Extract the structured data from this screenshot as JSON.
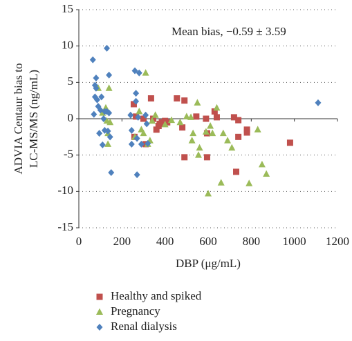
{
  "chart_data": {
    "type": "scatter",
    "annotation": "Mean bias, −0.59 ± 3.59",
    "xlabel": "DBP (μg/mL)",
    "ylabel": [
      "ADVIA Centaur bias to",
      "LC-MS/MS (ng/mL)"
    ],
    "xlim": [
      0,
      1200
    ],
    "xticks": [
      0,
      200,
      400,
      600,
      800,
      1000,
      1200
    ],
    "ylim": [
      -15,
      15
    ],
    "yticks": [
      -15,
      -10,
      -5,
      0,
      5,
      10,
      15
    ],
    "grid": true,
    "legend": "bottom",
    "series": [
      {
        "name": "Healthy and spiked",
        "color": "#c0504d",
        "marker": "square",
        "x": [
          255,
          258,
          265,
          335,
          345,
          360,
          370,
          375,
          385,
          400,
          410,
          455,
          480,
          490,
          490,
          545,
          590,
          595,
          595,
          630,
          640,
          720,
          730,
          740,
          740,
          780,
          780,
          980,
          310,
          300
        ],
        "values": [
          2,
          -2.5,
          0.3,
          2.8,
          0,
          -1.5,
          -1,
          -0.7,
          -0.5,
          -0.3,
          -0.5,
          2.8,
          -1.2,
          2.5,
          -5.3,
          0.3,
          0,
          -2,
          -5.3,
          1,
          0.2,
          0.2,
          -7.3,
          -2.5,
          -0.2,
          -1.5,
          -1.9,
          -3.3,
          -3.5,
          0
        ]
      },
      {
        "name": "Pregnancy",
        "color": "#9bbb59",
        "marker": "triangle",
        "x": [
          90,
          130,
          135,
          135,
          140,
          145,
          125,
          110,
          260,
          280,
          290,
          300,
          310,
          320,
          330,
          340,
          355,
          400,
          430,
          470,
          520,
          525,
          530,
          550,
          555,
          560,
          590,
          600,
          610,
          620,
          640,
          660,
          670,
          690,
          710,
          790,
          830,
          850,
          870,
          500
        ],
        "values": [
          4.2,
          -0.3,
          -2,
          -3.5,
          4.2,
          -0.5,
          1.5,
          0.8,
          -2.5,
          1,
          -1.5,
          -2,
          6.3,
          -3.5,
          -3,
          -0.3,
          0.5,
          -0.8,
          -0.2,
          -0.5,
          0.2,
          -3,
          -2,
          2.2,
          -5,
          -4,
          -1.8,
          -10.3,
          -1,
          -2,
          1.5,
          -8.8,
          -2,
          -3,
          -4,
          -8.9,
          -1.5,
          -6.3,
          -7.6,
          0.3
        ]
      },
      {
        "name": "Renal dialysis",
        "color": "#4f81bd",
        "marker": "diamond",
        "x": [
          65,
          70,
          75,
          75,
          80,
          80,
          85,
          90,
          95,
          100,
          105,
          110,
          115,
          120,
          120,
          130,
          130,
          135,
          140,
          140,
          145,
          150,
          240,
          245,
          245,
          260,
          265,
          265,
          270,
          275,
          280,
          290,
          310,
          320,
          315,
          270,
          1110
        ],
        "values": [
          8.1,
          0.6,
          4.6,
          3,
          5.6,
          4.2,
          2.6,
          1.7,
          -2,
          1.2,
          3,
          -3.6,
          0,
          1,
          -1.6,
          9.7,
          1,
          -1.7,
          6,
          0.8,
          -2.5,
          -7.4,
          0.5,
          -1.6,
          -3.5,
          6.6,
          3.5,
          2.4,
          -7.7,
          0.2,
          6.3,
          -3.5,
          0.5,
          -3.4,
          -0.7,
          -2.7,
          2.2
        ]
      }
    ]
  }
}
